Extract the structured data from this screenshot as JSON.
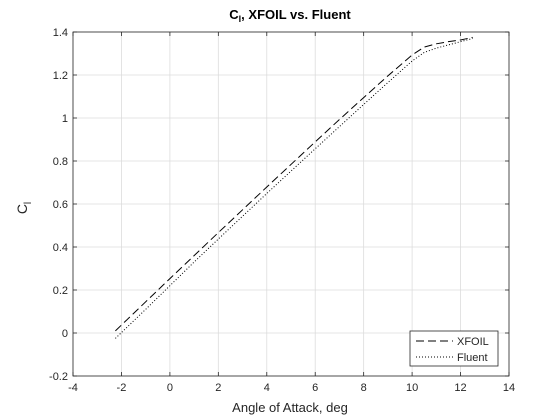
{
  "chart_data": {
    "type": "line",
    "title": "C_l, XFOIL vs. Fluent",
    "title_main": "C",
    "title_sub": "l",
    "title_rest": ", XFOIL vs. Fluent",
    "xlabel": "Angle of Attack, deg",
    "ylabel_main": "C",
    "ylabel_sub": "l",
    "xlim": [
      -4,
      14
    ],
    "ylim": [
      -0.2,
      1.4
    ],
    "xticks": [
      -4,
      -2,
      0,
      2,
      4,
      6,
      8,
      10,
      12,
      14
    ],
    "yticks": [
      -0.2,
      0,
      0.2,
      0.4,
      0.6,
      0.8,
      1,
      1.2,
      1.4
    ],
    "xtick_labels": [
      "-4",
      "-2",
      "0",
      "2",
      "4",
      "6",
      "8",
      "10",
      "12",
      "14"
    ],
    "ytick_labels": [
      "-0.2",
      "0",
      "0.2",
      "0.4",
      "0.6",
      "0.8",
      "1",
      "1.2",
      "1.4"
    ],
    "grid": true,
    "legend_position": "bottom-right",
    "series": [
      {
        "name": "XFOIL",
        "style": "dashed",
        "color": "#000000",
        "x": [
          -2.25,
          -1,
          0,
          1,
          2,
          3,
          4,
          5,
          6,
          7,
          8,
          9,
          10,
          10.5,
          11,
          11.5,
          12,
          12.5
        ],
        "y": [
          0.01,
          0.145,
          0.253,
          0.36,
          0.467,
          0.573,
          0.679,
          0.784,
          0.889,
          0.993,
          1.095,
          1.196,
          1.293,
          1.33,
          1.345,
          1.355,
          1.363,
          1.375
        ]
      },
      {
        "name": "Fluent",
        "style": "dotted",
        "color": "#000000",
        "x": [
          -2.25,
          -1,
          0,
          1,
          2,
          3,
          4,
          5,
          6,
          7,
          8,
          9,
          10,
          10.5,
          11,
          11.5,
          12,
          12.5
        ],
        "y": [
          -0.025,
          0.11,
          0.22,
          0.33,
          0.437,
          0.543,
          0.649,
          0.753,
          0.857,
          0.96,
          1.063,
          1.165,
          1.265,
          1.305,
          1.325,
          1.34,
          1.355,
          1.37
        ]
      }
    ]
  }
}
